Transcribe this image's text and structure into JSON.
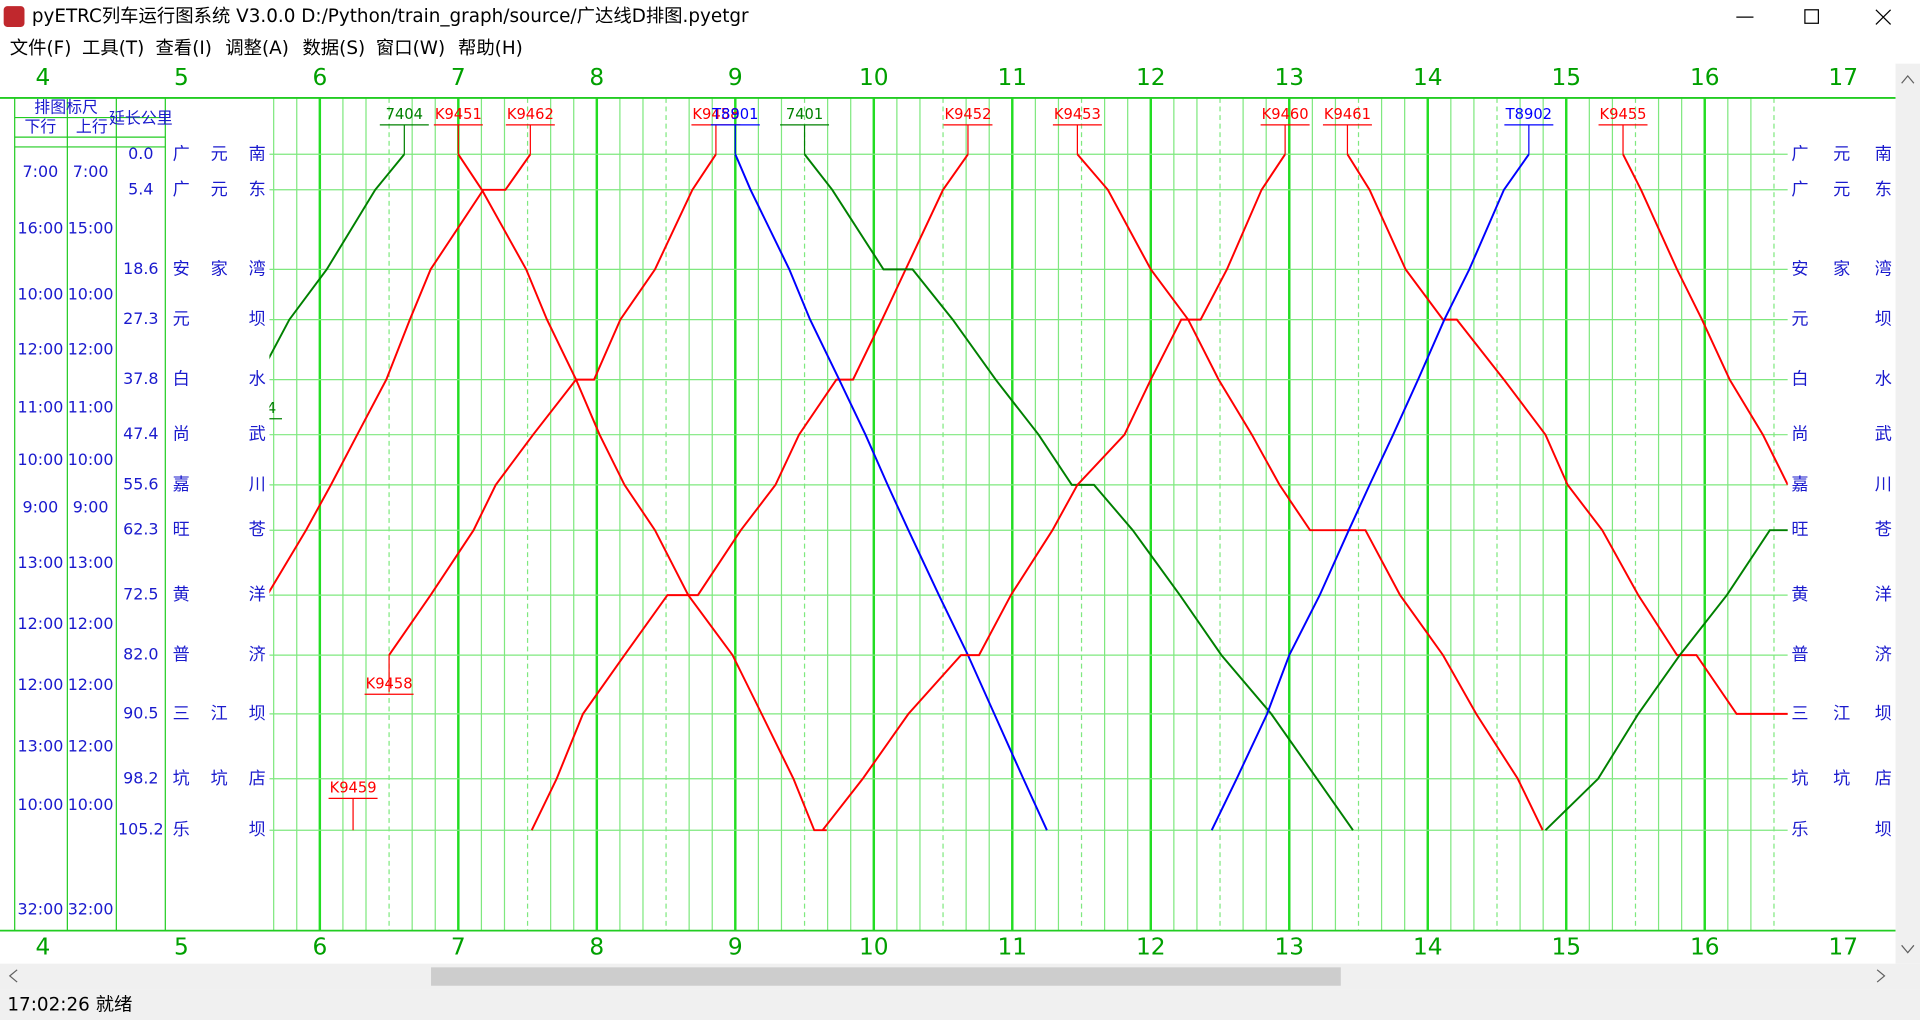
{
  "window": {
    "title": "pyETRC列车运行图系统 V3.0.0   D:/Python/train_graph/source/广达线D排图.pyetgr"
  },
  "menu": [
    "文件(F)",
    "工具(T)",
    "查看(I)",
    "调整(A)",
    "数据(S)",
    "窗口(W)",
    "帮助(H)"
  ],
  "status": "17:02:26 就绪",
  "diagram": {
    "header": "排图标尺",
    "down": "下行",
    "up": "上行",
    "km_header": "延长公里",
    "hours": [
      4,
      5,
      6,
      7,
      8,
      9,
      10,
      11,
      12,
      13,
      14,
      15,
      16,
      17
    ],
    "stations": [
      {
        "name": "广元南",
        "km": "0.0"
      },
      {
        "name": "广元东",
        "km": "5.4"
      },
      {
        "name": "安家湾",
        "km": "18.6"
      },
      {
        "name": "元坝",
        "km": "27.3"
      },
      {
        "name": "白水",
        "km": "37.8"
      },
      {
        "name": "尚武",
        "km": "47.4"
      },
      {
        "name": "嘉川",
        "km": "55.6"
      },
      {
        "name": "旺苍",
        "km": "62.3"
      },
      {
        "name": "黄洋",
        "km": "72.5"
      },
      {
        "name": "普济",
        "km": "82.0"
      },
      {
        "name": "三江坝",
        "km": "90.5"
      },
      {
        "name": "坑坑店",
        "km": "98.2"
      },
      {
        "name": "乐坝",
        "km": "105.2"
      }
    ],
    "rulers": [
      [
        "7:00",
        "7:00"
      ],
      [
        "16:00",
        "15:00"
      ],
      [
        "10:00",
        "10:00"
      ],
      [
        "12:00",
        "12:00"
      ],
      [
        "11:00",
        "11:00"
      ],
      [
        "10:00",
        "10:00"
      ],
      [
        "9:00",
        "9:00"
      ],
      [
        "13:00",
        "13:00"
      ],
      [
        "12:00",
        "12:00"
      ],
      [
        "12:00",
        "12:00"
      ],
      [
        "13:00",
        "12:00"
      ],
      [
        "10:00",
        "10:00"
      ],
      [
        "32:00",
        "32:00"
      ]
    ],
    "trains": [
      {
        "name": "7404",
        "color": "#008000",
        "times": [
          5.55,
          5.78,
          6.05,
          6.4,
          6.61
        ],
        "kms": [
          37.8,
          27.3,
          18.6,
          5.4,
          0
        ]
      },
      {
        "name": "K9451",
        "color": "#ff0000",
        "times": [
          7.0,
          7.17,
          7.49,
          7.64,
          7.85,
          8.02,
          8.2,
          8.42,
          8.66,
          8.98,
          9.19,
          9.42,
          9.57,
          9.66
        ],
        "kms": [
          0,
          5.4,
          18.6,
          27.3,
          37.8,
          47.4,
          55.6,
          62.3,
          72.5,
          82.0,
          90.5,
          98.2,
          105.2,
          105.2
        ]
      },
      {
        "name": "K9462",
        "color": "#ff0000",
        "times": [
          5.62,
          5.9,
          6.08,
          6.27,
          6.48,
          6.65,
          6.8,
          7.18,
          7.34,
          7.52
        ],
        "kms": [
          72.5,
          62.3,
          55.6,
          47.4,
          37.8,
          27.3,
          18.6,
          5.4,
          5.4,
          0
        ]
      },
      {
        "name": "K9458",
        "color": "#ff0000",
        "times": [
          6.5,
          6.8,
          7.11,
          7.27,
          7.54,
          7.85,
          7.98,
          8.17,
          8.42,
          8.69,
          8.86
        ],
        "kms": [
          82.0,
          72.5,
          62.3,
          55.6,
          47.4,
          37.8,
          37.8,
          27.3,
          18.6,
          5.4,
          0
        ]
      },
      {
        "name": "K9452",
        "color": "#ff0000",
        "times": [
          7.53,
          7.71,
          7.9,
          8.2,
          8.51,
          8.73,
          9.04,
          9.29,
          9.46,
          9.73,
          9.85,
          10.06,
          10.23,
          10.5,
          10.68
        ],
        "kms": [
          105.2,
          98.2,
          90.5,
          82.0,
          72.5,
          72.5,
          62.3,
          55.6,
          47.4,
          37.8,
          37.8,
          27.3,
          18.6,
          5.4,
          0
        ]
      },
      {
        "name": "T8901",
        "color": "#0000ff",
        "times": [
          9.0,
          9.11,
          9.39,
          9.54,
          9.75,
          9.94,
          10.1,
          10.25,
          10.47,
          10.68,
          10.87,
          11.08,
          11.25
        ],
        "kms": [
          0,
          5.4,
          18.6,
          27.3,
          37.8,
          47.4,
          55.6,
          62.3,
          72.5,
          82.0,
          90.5,
          98.2,
          105.2
        ]
      },
      {
        "name": "7401",
        "color": "#008000",
        "times": [
          9.5,
          9.7,
          10.07,
          10.28,
          10.57,
          10.88,
          11.19,
          11.43,
          11.59,
          11.87,
          12.21,
          12.51,
          12.87,
          13.2,
          13.46
        ],
        "kms": [
          0,
          5.4,
          18.6,
          18.6,
          27.3,
          37.8,
          47.4,
          55.6,
          55.6,
          62.3,
          72.5,
          82.0,
          90.5,
          98.2,
          105.2
        ]
      },
      {
        "name": "K9460",
        "color": "#ff0000",
        "times": [
          9.63,
          9.92,
          10.25,
          10.63,
          10.76,
          10.99,
          11.29,
          11.47,
          11.81,
          12.0,
          12.22,
          12.36,
          12.55,
          12.8,
          12.97
        ],
        "kms": [
          105.2,
          98.2,
          90.5,
          82.0,
          82.0,
          72.5,
          62.3,
          55.6,
          47.4,
          37.8,
          27.3,
          27.3,
          18.6,
          5.4,
          0
        ]
      },
      {
        "name": "K9453",
        "color": "#ff0000",
        "times": [
          11.47,
          11.69,
          12.0,
          12.27,
          12.49,
          12.73,
          12.93,
          13.15,
          13.55,
          13.8,
          14.11,
          14.35,
          14.65,
          14.83
        ],
        "kms": [
          0,
          5.4,
          18.6,
          27.3,
          37.8,
          47.4,
          55.6,
          62.3,
          62.3,
          72.5,
          82.0,
          90.5,
          98.2,
          105.2
        ]
      },
      {
        "name": "K9461",
        "color": "#ff0000",
        "times": [
          13.42,
          13.58,
          13.84,
          14.11,
          14.21,
          14.55,
          14.85,
          15.01,
          15.26,
          15.52,
          15.8,
          15.94,
          16.23,
          16.6
        ],
        "kms": [
          0,
          5.4,
          18.6,
          27.3,
          27.3,
          37.8,
          47.4,
          55.6,
          62.3,
          72.5,
          82.0,
          82.0,
          90.5,
          90.5
        ]
      },
      {
        "name": "T8902",
        "color": "#0000ff",
        "times": [
          12.44,
          12.62,
          12.84,
          13.0,
          13.22,
          13.43,
          13.58,
          13.75,
          13.93,
          14.12,
          14.3,
          14.55,
          14.73
        ],
        "kms": [
          105.2,
          98.2,
          90.5,
          82.0,
          72.5,
          62.3,
          55.6,
          47.4,
          37.8,
          27.3,
          18.6,
          5.4,
          0
        ]
      },
      {
        "name": "K9455",
        "color": "#ff0000",
        "times": [
          15.41,
          15.54,
          15.8,
          15.98,
          16.18,
          16.42,
          16.6
        ],
        "kms": [
          0,
          5.4,
          18.6,
          27.3,
          37.8,
          47.4,
          55.6
        ]
      },
      {
        "name": "K9459",
        "color": "#ff0000",
        "times": [
          6.24
        ],
        "kms": [
          105.2
        ]
      },
      {
        "color": "#008000",
        "times": [
          14.85,
          15.23,
          15.52,
          15.82,
          16.16,
          16.47,
          16.6
        ],
        "kms": [
          105.2,
          98.2,
          90.5,
          82.0,
          72.5,
          62.3,
          62.3
        ]
      }
    ]
  }
}
